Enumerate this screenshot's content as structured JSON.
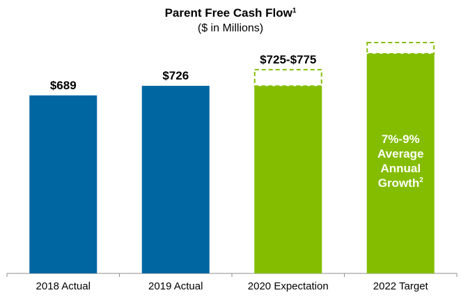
{
  "chart_data": {
    "type": "bar",
    "title": "Parent Free Cash Flow",
    "title_footnote": "1",
    "subtitle": "($ in Millions)",
    "categories": [
      "2018 Actual",
      "2019 Actual",
      "2020 Expectation",
      "2022 Target"
    ],
    "values": [
      689,
      726,
      725,
      850
    ],
    "ranges": [
      null,
      null,
      [
        725,
        775
      ],
      [
        850,
        880
      ]
    ],
    "value_labels": [
      "$689",
      "$726",
      "$725-$775",
      ""
    ],
    "bar_colors": [
      "#0066a1",
      "#0066a1",
      "#84bd00",
      "#84bd00"
    ],
    "range_outline_color": "#84bd00",
    "ylim": [
      0,
      1000
    ],
    "annotation": {
      "lines": [
        "7%-9%",
        "Average",
        "Annual",
        "Growth"
      ],
      "footnote": "2",
      "color": "#ffffff"
    },
    "grid": false,
    "legend": "none"
  }
}
